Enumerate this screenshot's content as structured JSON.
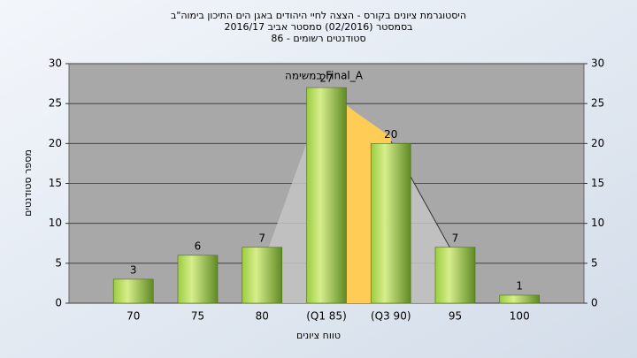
{
  "chart_data": {
    "type": "bar",
    "title": [
      "היסטוגרמת ציונים בקורס - הצצה לחיי היהודים באגן הים התיכון בימוה\"ב",
      "בסמסטר (02/2016) סמסטר אביב 2016/17",
      "סטודנטים רשומים - 86"
    ],
    "annotation": "Final_A במשימה",
    "x_label": "טווח ציונים",
    "y_label": "מספר סטודנטים",
    "categories": [
      "70",
      "75",
      "80",
      "(Q1 85)",
      "(Q3 90)",
      "95",
      "100"
    ],
    "values": [
      3,
      6,
      7,
      27,
      20,
      7,
      1
    ],
    "ylim": [
      0,
      30
    ],
    "yticks": [
      0,
      5,
      10,
      15,
      20,
      25,
      30
    ],
    "y2lim": [
      0,
      30
    ],
    "y2ticks": [
      0,
      5,
      10,
      15,
      20,
      25,
      30
    ],
    "grid": true
  }
}
